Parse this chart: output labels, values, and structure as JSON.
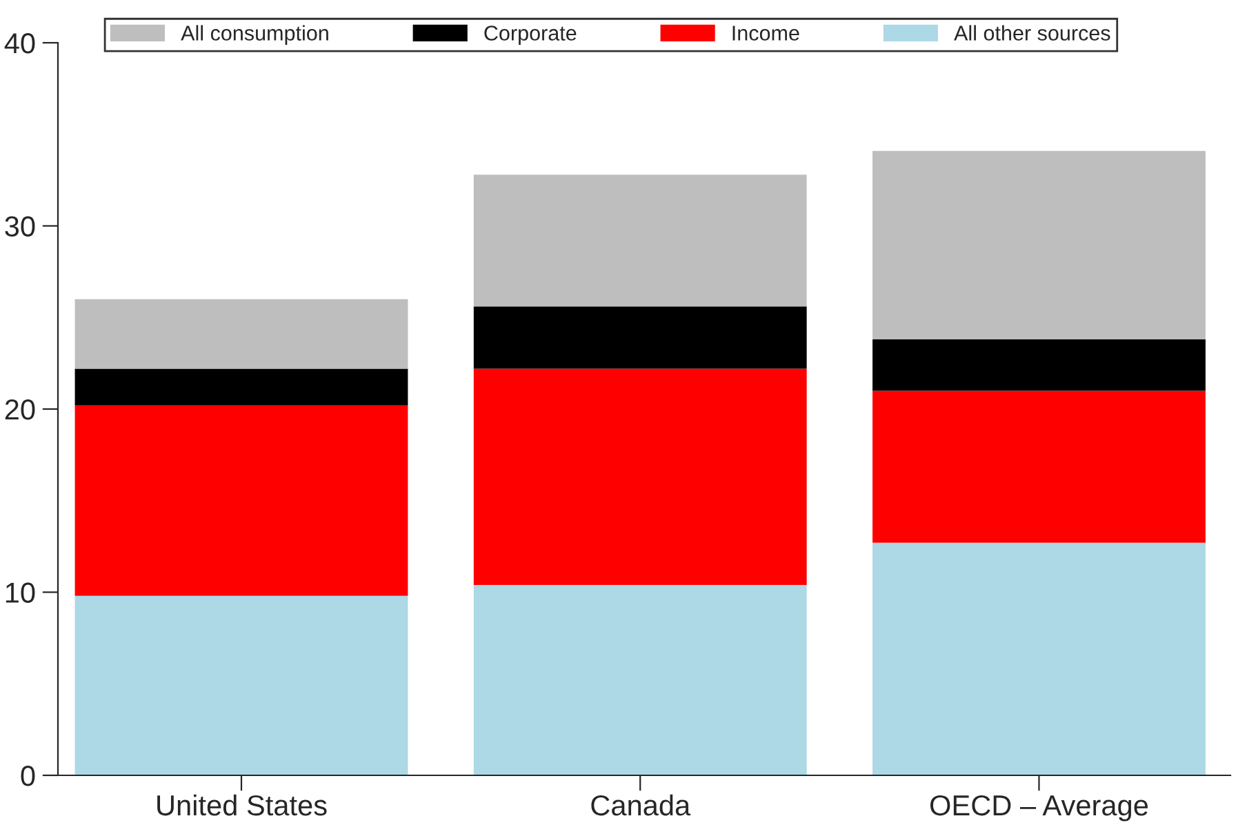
{
  "chart_data": {
    "type": "bar",
    "stacked": true,
    "categories": [
      "United States",
      "Canada",
      "OECD – Average"
    ],
    "series": [
      {
        "name": "All other sources",
        "color": "#add8e6",
        "values": [
          9.8,
          10.4,
          12.7
        ]
      },
      {
        "name": "Income",
        "color": "#ff0000",
        "values": [
          10.4,
          11.8,
          8.3
        ]
      },
      {
        "name": "Corporate",
        "color": "#000000",
        "values": [
          2.0,
          3.4,
          2.8
        ]
      },
      {
        "name": "All consumption",
        "color": "#bebebe",
        "values": [
          3.8,
          7.2,
          10.3
        ]
      }
    ],
    "ylim": [
      0,
      40
    ],
    "yticks": [
      0,
      10,
      20,
      30,
      40
    ],
    "grid": false,
    "legend": "top"
  }
}
